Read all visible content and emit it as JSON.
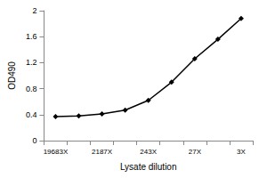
{
  "chart_data": {
    "type": "line",
    "x_label": "Lysate dilution",
    "y_label": "OD490",
    "categories": [
      "19683X",
      null,
      "2187X",
      null,
      "243X",
      null,
      "27X",
      null,
      "3X"
    ],
    "values": [
      0.37,
      0.38,
      0.41,
      0.47,
      0.62,
      0.9,
      1.26,
      1.56,
      1.88
    ],
    "color": "#000000",
    "marker": "diamond",
    "ylim": [
      0,
      2
    ],
    "yticks": [
      0,
      0.4,
      0.8,
      1.2,
      1.6,
      2
    ],
    "grid": false
  }
}
